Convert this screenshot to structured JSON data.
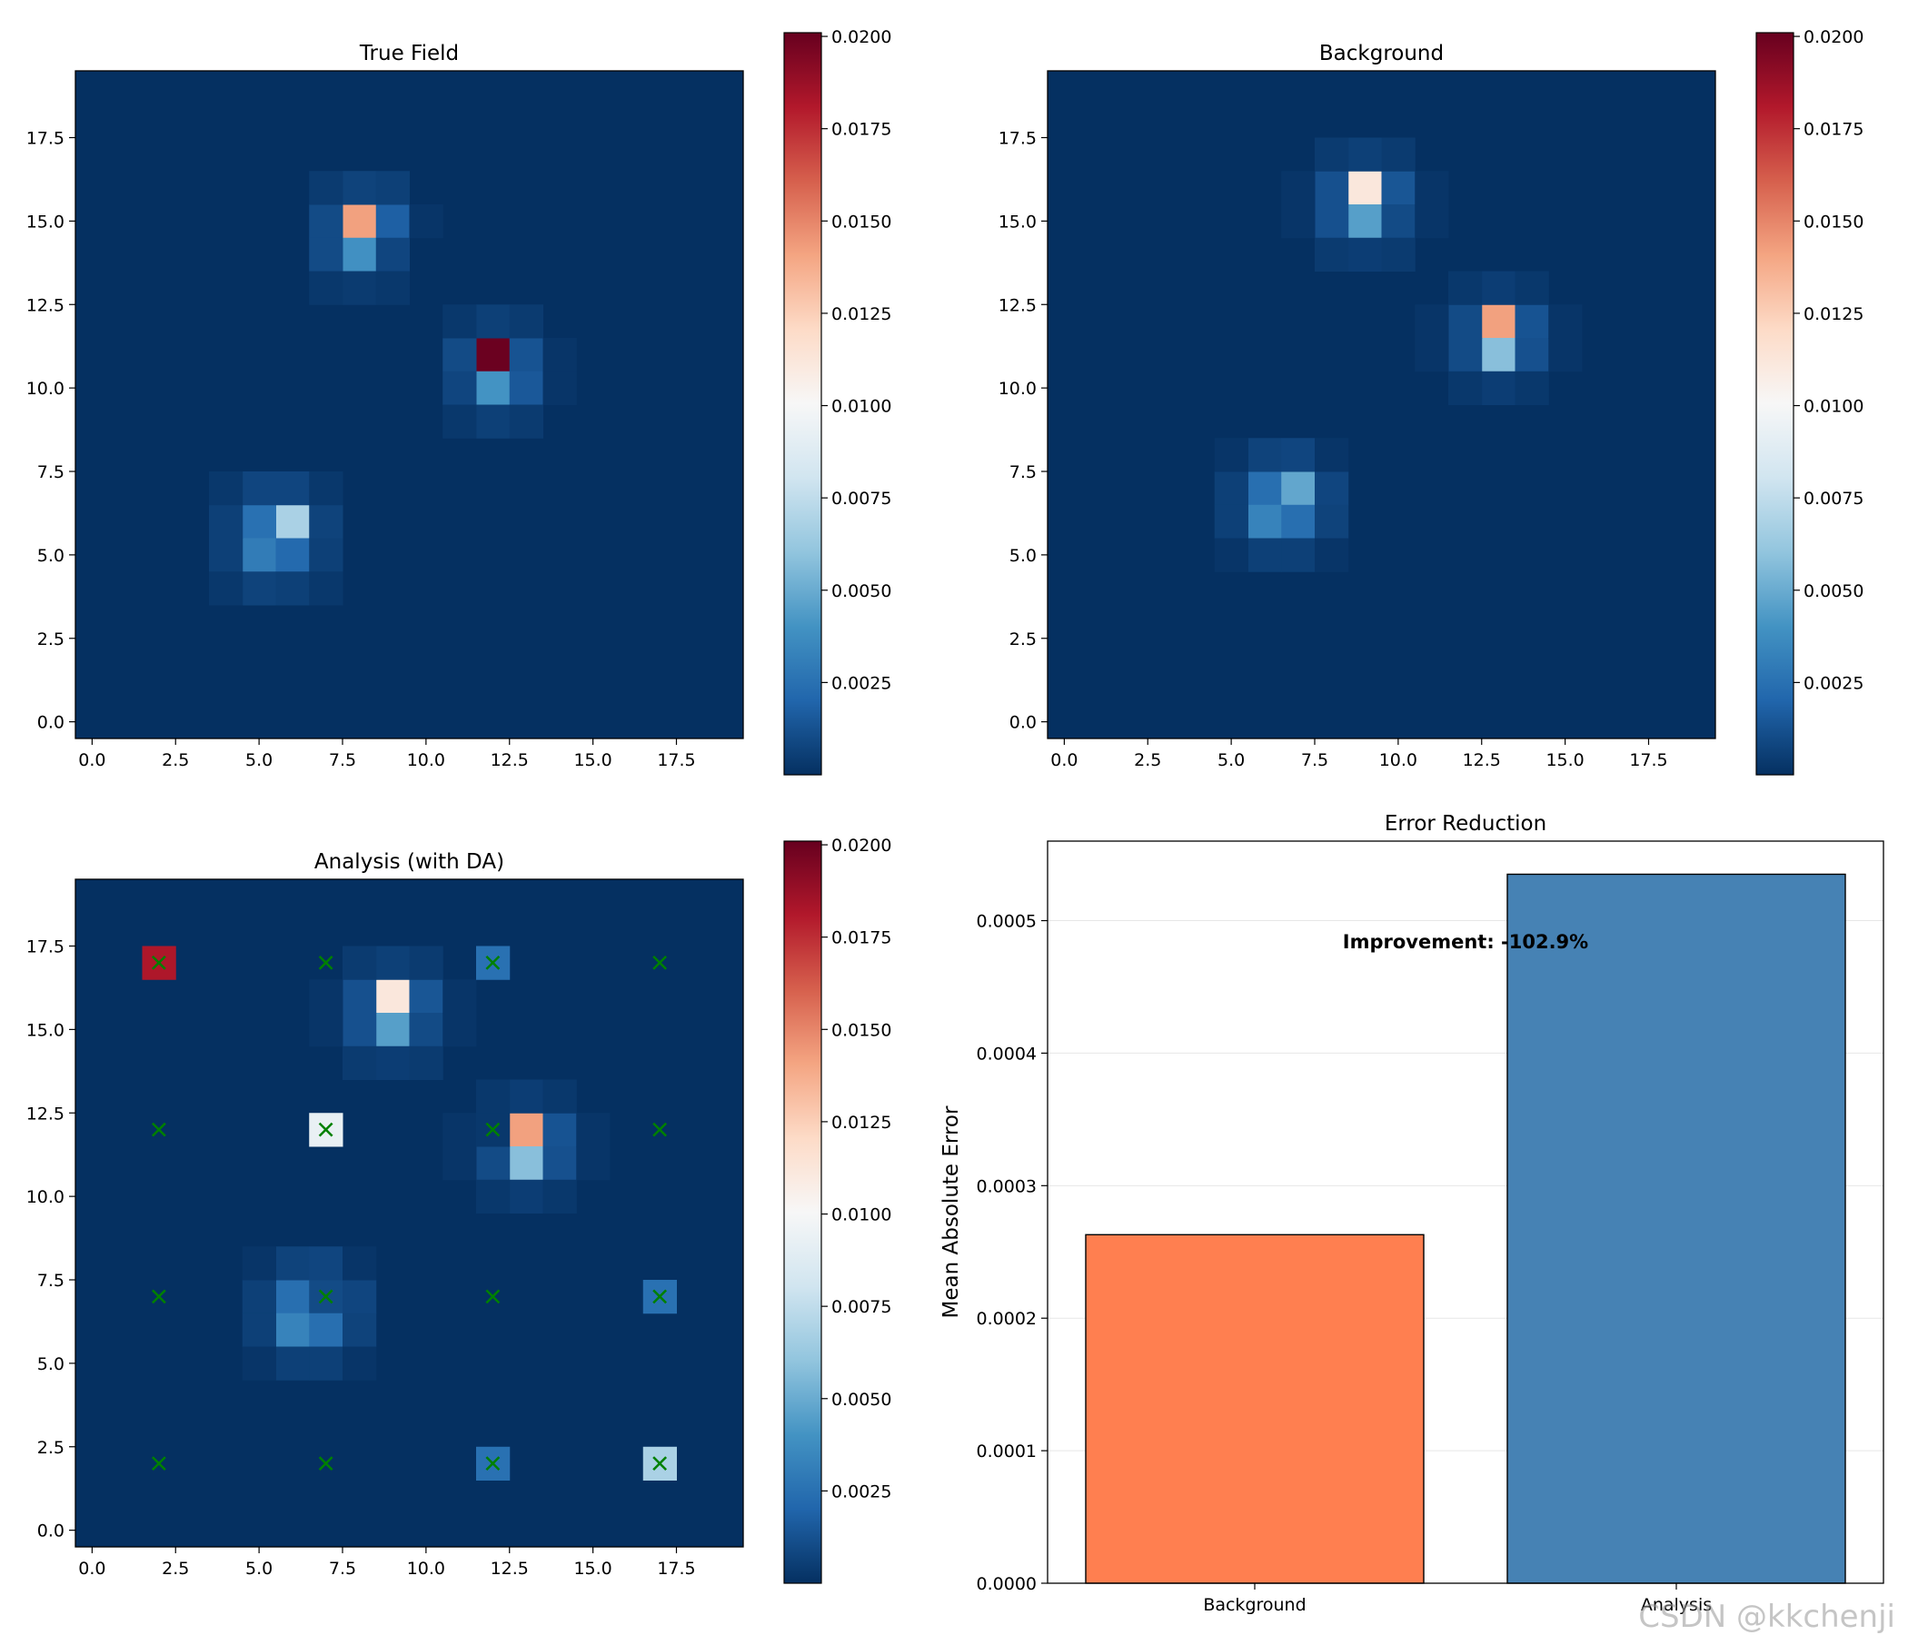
{
  "chart_data": [
    {
      "type": "heatmap",
      "title": "True Field",
      "grid_size": 20,
      "xlabel": "",
      "ylabel": "",
      "xlim": [
        -0.5,
        19.5
      ],
      "ylim": [
        -0.5,
        19.5
      ],
      "xticks": [
        "0.0",
        "2.5",
        "5.0",
        "7.5",
        "10.0",
        "12.5",
        "15.0",
        "17.5"
      ],
      "yticks": [
        "0.0",
        "2.5",
        "5.0",
        "7.5",
        "10.0",
        "12.5",
        "15.0",
        "17.5"
      ],
      "colormap": "RdBu_r",
      "vmin": 0.0,
      "vmax": 0.0201,
      "colorbar_ticks": [
        "0.0025",
        "0.0050",
        "0.0075",
        "0.0100",
        "0.0125",
        "0.0150",
        "0.0175",
        "0.0200"
      ],
      "cells": [
        {
          "x": 8,
          "y": 15,
          "value": 0.0142
        },
        {
          "x": 8,
          "y": 14,
          "value": 0.0039
        },
        {
          "x": 9,
          "y": 15,
          "value": 0.0018
        },
        {
          "x": 7,
          "y": 15,
          "value": 0.001
        },
        {
          "x": 7,
          "y": 14,
          "value": 0.001
        },
        {
          "x": 9,
          "y": 14,
          "value": 0.0008
        },
        {
          "x": 8,
          "y": 16,
          "value": 0.0007
        },
        {
          "x": 9,
          "y": 16,
          "value": 0.0006
        },
        {
          "x": 7,
          "y": 16,
          "value": 0.0004
        },
        {
          "x": 8,
          "y": 13,
          "value": 0.0004
        },
        {
          "x": 7,
          "y": 13,
          "value": 0.0003
        },
        {
          "x": 9,
          "y": 13,
          "value": 0.0003
        },
        {
          "x": 10,
          "y": 15,
          "value": 0.0002
        },
        {
          "x": 12,
          "y": 11,
          "value": 0.02
        },
        {
          "x": 12,
          "y": 10,
          "value": 0.004
        },
        {
          "x": 13,
          "y": 11,
          "value": 0.0013
        },
        {
          "x": 13,
          "y": 10,
          "value": 0.0015
        },
        {
          "x": 11,
          "y": 11,
          "value": 0.001
        },
        {
          "x": 11,
          "y": 10,
          "value": 0.0008
        },
        {
          "x": 12,
          "y": 12,
          "value": 0.0006
        },
        {
          "x": 12,
          "y": 9,
          "value": 0.0006
        },
        {
          "x": 13,
          "y": 12,
          "value": 0.0004
        },
        {
          "x": 13,
          "y": 9,
          "value": 0.0004
        },
        {
          "x": 11,
          "y": 12,
          "value": 0.0003
        },
        {
          "x": 11,
          "y": 9,
          "value": 0.0003
        },
        {
          "x": 14,
          "y": 11,
          "value": 0.0002
        },
        {
          "x": 14,
          "y": 10,
          "value": 0.0002
        },
        {
          "x": 6,
          "y": 6,
          "value": 0.0068
        },
        {
          "x": 5,
          "y": 6,
          "value": 0.0025
        },
        {
          "x": 5,
          "y": 5,
          "value": 0.003
        },
        {
          "x": 6,
          "y": 5,
          "value": 0.0022
        },
        {
          "x": 5,
          "y": 7,
          "value": 0.0008
        },
        {
          "x": 6,
          "y": 7,
          "value": 0.0008
        },
        {
          "x": 7,
          "y": 6,
          "value": 0.0007
        },
        {
          "x": 7,
          "y": 5,
          "value": 0.0006
        },
        {
          "x": 4,
          "y": 6,
          "value": 0.0006
        },
        {
          "x": 4,
          "y": 5,
          "value": 0.0006
        },
        {
          "x": 5,
          "y": 4,
          "value": 0.0007
        },
        {
          "x": 6,
          "y": 4,
          "value": 0.0006
        },
        {
          "x": 4,
          "y": 7,
          "value": 0.0003
        },
        {
          "x": 7,
          "y": 7,
          "value": 0.0003
        },
        {
          "x": 4,
          "y": 4,
          "value": 0.0003
        },
        {
          "x": 7,
          "y": 4,
          "value": 0.0003
        }
      ]
    },
    {
      "type": "heatmap",
      "title": "Background",
      "grid_size": 20,
      "xlabel": "",
      "ylabel": "",
      "xlim": [
        -0.5,
        19.5
      ],
      "ylim": [
        -0.5,
        19.5
      ],
      "xticks": [
        "0.0",
        "2.5",
        "5.0",
        "7.5",
        "10.0",
        "12.5",
        "15.0",
        "17.5"
      ],
      "yticks": [
        "0.0",
        "2.5",
        "5.0",
        "7.5",
        "10.0",
        "12.5",
        "15.0",
        "17.5"
      ],
      "colormap": "RdBu_r",
      "vmin": 0.0,
      "vmax": 0.0201,
      "colorbar_ticks": [
        "0.0025",
        "0.0050",
        "0.0075",
        "0.0100",
        "0.0125",
        "0.0150",
        "0.0175",
        "0.0200"
      ],
      "cells": [
        {
          "x": 9,
          "y": 16,
          "value": 0.0112
        },
        {
          "x": 9,
          "y": 15,
          "value": 0.0045
        },
        {
          "x": 8,
          "y": 16,
          "value": 0.0012
        },
        {
          "x": 8,
          "y": 15,
          "value": 0.0012
        },
        {
          "x": 10,
          "y": 16,
          "value": 0.0014
        },
        {
          "x": 10,
          "y": 15,
          "value": 0.001
        },
        {
          "x": 9,
          "y": 17,
          "value": 0.0006
        },
        {
          "x": 9,
          "y": 14,
          "value": 0.0005
        },
        {
          "x": 8,
          "y": 17,
          "value": 0.0004
        },
        {
          "x": 10,
          "y": 17,
          "value": 0.0004
        },
        {
          "x": 8,
          "y": 14,
          "value": 0.0004
        },
        {
          "x": 10,
          "y": 14,
          "value": 0.0004
        },
        {
          "x": 7,
          "y": 16,
          "value": 0.0002
        },
        {
          "x": 7,
          "y": 15,
          "value": 0.0002
        },
        {
          "x": 11,
          "y": 16,
          "value": 0.0002
        },
        {
          "x": 11,
          "y": 15,
          "value": 0.0002
        },
        {
          "x": 13,
          "y": 12,
          "value": 0.0142
        },
        {
          "x": 13,
          "y": 11,
          "value": 0.0058
        },
        {
          "x": 12,
          "y": 12,
          "value": 0.001
        },
        {
          "x": 12,
          "y": 11,
          "value": 0.001
        },
        {
          "x": 14,
          "y": 12,
          "value": 0.0013
        },
        {
          "x": 14,
          "y": 11,
          "value": 0.0012
        },
        {
          "x": 13,
          "y": 13,
          "value": 0.0005
        },
        {
          "x": 13,
          "y": 10,
          "value": 0.0005
        },
        {
          "x": 12,
          "y": 13,
          "value": 0.0003
        },
        {
          "x": 14,
          "y": 13,
          "value": 0.0003
        },
        {
          "x": 12,
          "y": 10,
          "value": 0.0003
        },
        {
          "x": 14,
          "y": 10,
          "value": 0.0003
        },
        {
          "x": 11,
          "y": 12,
          "value": 0.0002
        },
        {
          "x": 11,
          "y": 11,
          "value": 0.0002
        },
        {
          "x": 15,
          "y": 12,
          "value": 0.0002
        },
        {
          "x": 15,
          "y": 11,
          "value": 0.0002
        },
        {
          "x": 6,
          "y": 7,
          "value": 0.0024
        },
        {
          "x": 7,
          "y": 7,
          "value": 0.0048
        },
        {
          "x": 6,
          "y": 6,
          "value": 0.0033
        },
        {
          "x": 7,
          "y": 6,
          "value": 0.0024
        },
        {
          "x": 5,
          "y": 7,
          "value": 0.0006
        },
        {
          "x": 5,
          "y": 6,
          "value": 0.0006
        },
        {
          "x": 8,
          "y": 7,
          "value": 0.0008
        },
        {
          "x": 8,
          "y": 6,
          "value": 0.0007
        },
        {
          "x": 6,
          "y": 8,
          "value": 0.0007
        },
        {
          "x": 7,
          "y": 8,
          "value": 0.0008
        },
        {
          "x": 6,
          "y": 5,
          "value": 0.0006
        },
        {
          "x": 7,
          "y": 5,
          "value": 0.0006
        },
        {
          "x": 5,
          "y": 8,
          "value": 0.0002
        },
        {
          "x": 8,
          "y": 8,
          "value": 0.0002
        },
        {
          "x": 5,
          "y": 5,
          "value": 0.0002
        },
        {
          "x": 8,
          "y": 5,
          "value": 0.0002
        }
      ]
    },
    {
      "type": "heatmap",
      "title": "Analysis (with DA)",
      "grid_size": 20,
      "xlabel": "",
      "ylabel": "",
      "xlim": [
        -0.5,
        19.5
      ],
      "ylim": [
        -0.5,
        19.5
      ],
      "xticks": [
        "0.0",
        "2.5",
        "5.0",
        "7.5",
        "10.0",
        "12.5",
        "15.0",
        "17.5"
      ],
      "yticks": [
        "0.0",
        "2.5",
        "5.0",
        "7.5",
        "10.0",
        "12.5",
        "15.0",
        "17.5"
      ],
      "colormap": "RdBu_r",
      "vmin": 0.0,
      "vmax": 0.0201,
      "colorbar_ticks": [
        "0.0025",
        "0.0050",
        "0.0075",
        "0.0100",
        "0.0125",
        "0.0150",
        "0.0175",
        "0.0200"
      ],
      "observation_marker": "x",
      "observation_color": "#008000",
      "observations": [
        {
          "x": 2,
          "y": 17
        },
        {
          "x": 7,
          "y": 17
        },
        {
          "x": 12,
          "y": 17
        },
        {
          "x": 17,
          "y": 17
        },
        {
          "x": 2,
          "y": 12
        },
        {
          "x": 7,
          "y": 12
        },
        {
          "x": 12,
          "y": 12
        },
        {
          "x": 17,
          "y": 12
        },
        {
          "x": 2,
          "y": 7
        },
        {
          "x": 7,
          "y": 7
        },
        {
          "x": 12,
          "y": 7
        },
        {
          "x": 17,
          "y": 7
        },
        {
          "x": 2,
          "y": 2
        },
        {
          "x": 7,
          "y": 2
        },
        {
          "x": 12,
          "y": 2
        },
        {
          "x": 17,
          "y": 2
        }
      ],
      "cells": [
        {
          "x": 9,
          "y": 16,
          "value": 0.0112
        },
        {
          "x": 9,
          "y": 15,
          "value": 0.0045
        },
        {
          "x": 8,
          "y": 16,
          "value": 0.0012
        },
        {
          "x": 8,
          "y": 15,
          "value": 0.0012
        },
        {
          "x": 10,
          "y": 16,
          "value": 0.0014
        },
        {
          "x": 10,
          "y": 15,
          "value": 0.001
        },
        {
          "x": 9,
          "y": 17,
          "value": 0.0006
        },
        {
          "x": 9,
          "y": 14,
          "value": 0.0005
        },
        {
          "x": 8,
          "y": 17,
          "value": 0.0004
        },
        {
          "x": 10,
          "y": 17,
          "value": 0.0004
        },
        {
          "x": 8,
          "y": 14,
          "value": 0.0004
        },
        {
          "x": 10,
          "y": 14,
          "value": 0.0004
        },
        {
          "x": 7,
          "y": 16,
          "value": 0.0002
        },
        {
          "x": 7,
          "y": 15,
          "value": 0.0002
        },
        {
          "x": 11,
          "y": 16,
          "value": 0.0002
        },
        {
          "x": 11,
          "y": 15,
          "value": 0.0002
        },
        {
          "x": 13,
          "y": 12,
          "value": 0.0142
        },
        {
          "x": 13,
          "y": 11,
          "value": 0.0058
        },
        {
          "x": 12,
          "y": 11,
          "value": 0.001
        },
        {
          "x": 14,
          "y": 12,
          "value": 0.0013
        },
        {
          "x": 14,
          "y": 11,
          "value": 0.0012
        },
        {
          "x": 13,
          "y": 13,
          "value": 0.0005
        },
        {
          "x": 13,
          "y": 10,
          "value": 0.0005
        },
        {
          "x": 12,
          "y": 13,
          "value": 0.0003
        },
        {
          "x": 14,
          "y": 13,
          "value": 0.0003
        },
        {
          "x": 12,
          "y": 10,
          "value": 0.0003
        },
        {
          "x": 14,
          "y": 10,
          "value": 0.0003
        },
        {
          "x": 11,
          "y": 12,
          "value": 0.0002
        },
        {
          "x": 11,
          "y": 11,
          "value": 0.0002
        },
        {
          "x": 15,
          "y": 12,
          "value": 0.0002
        },
        {
          "x": 15,
          "y": 11,
          "value": 0.0002
        },
        {
          "x": 6,
          "y": 7,
          "value": 0.0024
        },
        {
          "x": 7,
          "y": 7,
          "value": 0.001
        },
        {
          "x": 6,
          "y": 6,
          "value": 0.0033
        },
        {
          "x": 7,
          "y": 6,
          "value": 0.0024
        },
        {
          "x": 5,
          "y": 7,
          "value": 0.0006
        },
        {
          "x": 5,
          "y": 6,
          "value": 0.0006
        },
        {
          "x": 8,
          "y": 7,
          "value": 0.0008
        },
        {
          "x": 8,
          "y": 6,
          "value": 0.0007
        },
        {
          "x": 6,
          "y": 8,
          "value": 0.0007
        },
        {
          "x": 7,
          "y": 8,
          "value": 0.0008
        },
        {
          "x": 6,
          "y": 5,
          "value": 0.0006
        },
        {
          "x": 7,
          "y": 5,
          "value": 0.0006
        },
        {
          "x": 5,
          "y": 8,
          "value": 0.0002
        },
        {
          "x": 8,
          "y": 8,
          "value": 0.0002
        },
        {
          "x": 5,
          "y": 5,
          "value": 0.0002
        },
        {
          "x": 8,
          "y": 5,
          "value": 0.0002
        },
        {
          "x": 2,
          "y": 17,
          "value": 0.0182
        },
        {
          "x": 7,
          "y": 12,
          "value": 0.0093
        },
        {
          "x": 12,
          "y": 12,
          "value": 0.0003
        },
        {
          "x": 12,
          "y": 17,
          "value": 0.0025
        },
        {
          "x": 17,
          "y": 7,
          "value": 0.0025
        },
        {
          "x": 12,
          "y": 2,
          "value": 0.0025
        },
        {
          "x": 17,
          "y": 2,
          "value": 0.0068
        }
      ]
    },
    {
      "type": "bar",
      "title": "Error Reduction",
      "categories": [
        "Background",
        "Analysis"
      ],
      "values": [
        0.000263,
        0.000535
      ],
      "colors": [
        "#ff7f50",
        "#4682b4"
      ],
      "xlabel": "",
      "ylabel": "Mean Absolute Error",
      "ylim": [
        0,
        0.00056
      ],
      "yticks": [
        "0.0000",
        "0.0001",
        "0.0002",
        "0.0003",
        "0.0004",
        "0.0005"
      ],
      "grid": "y",
      "annotation": "Improvement: -102.9%"
    }
  ],
  "watermark": "CSDN @kkchenji"
}
